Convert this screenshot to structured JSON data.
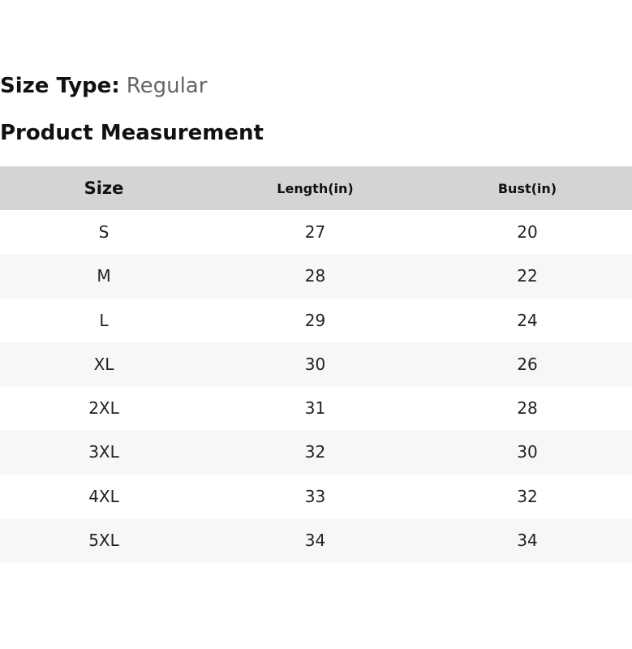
{
  "size_type": {
    "label": "Size Type:",
    "value": "Regular"
  },
  "section_title": "Product Measurement",
  "table": {
    "headers": [
      "Size",
      "Length(in)",
      "Bust(in)"
    ],
    "rows": [
      [
        "S",
        "27",
        "20"
      ],
      [
        "M",
        "28",
        "22"
      ],
      [
        "L",
        "29",
        "24"
      ],
      [
        "XL",
        "30",
        "26"
      ],
      [
        "2XL",
        "31",
        "28"
      ],
      [
        "3XL",
        "32",
        "30"
      ],
      [
        "4XL",
        "33",
        "32"
      ],
      [
        "5XL",
        "34",
        "34"
      ]
    ]
  },
  "colors": {
    "header_bg": "#d4d4d4",
    "stripe_bg": "#f7f7f7",
    "muted_text": "#666666"
  }
}
